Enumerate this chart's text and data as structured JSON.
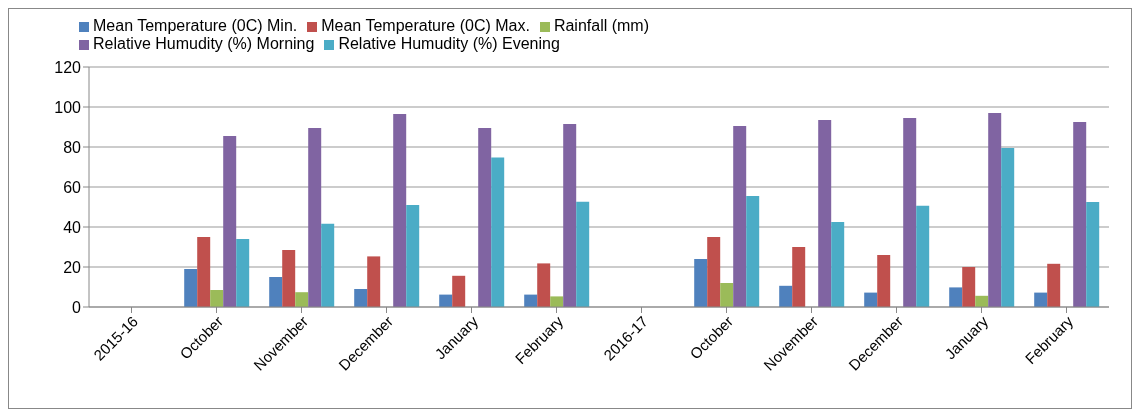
{
  "chart_data": {
    "type": "bar",
    "categories": [
      "2015-16",
      "October",
      "November",
      "December",
      "January",
      "February",
      "2016-17",
      "October",
      "November",
      "December",
      "January",
      "February"
    ],
    "series": [
      {
        "name": "Mean Temperature (0C) Min.",
        "color": "#4f81bd",
        "values": [
          null,
          19,
          15,
          9,
          6.2,
          6.2,
          null,
          24,
          10.6,
          7.2,
          9.8,
          7.2
        ]
      },
      {
        "name": "Mean Temperature (0C) Max.",
        "color": "#c0504d",
        "values": [
          null,
          35,
          28.5,
          25.3,
          15.6,
          21.8,
          null,
          35,
          30,
          26,
          20,
          21.6
        ]
      },
      {
        "name": "Rainfall (mm)",
        "color": "#9bbb59",
        "values": [
          null,
          8.5,
          7.4,
          null,
          null,
          5.3,
          null,
          12,
          null,
          null,
          5.6,
          null
        ]
      },
      {
        "name": "Relative Humudity (%) Morning",
        "color": "#8064a2",
        "values": [
          null,
          85.5,
          89.5,
          96.5,
          89.5,
          91.5,
          null,
          90.5,
          93.5,
          94.5,
          97,
          92.5
        ]
      },
      {
        "name": "Relative Humudity (%) Evening",
        "color": "#4bacc6",
        "values": [
          null,
          34,
          41.6,
          51,
          74.7,
          52.6,
          null,
          55.5,
          42.5,
          50.6,
          79.5,
          52.5
        ]
      }
    ],
    "ylim": [
      0,
      120
    ],
    "yticks": [
      0,
      20,
      40,
      60,
      80,
      100,
      120
    ],
    "grid": "y",
    "legend": "top"
  }
}
